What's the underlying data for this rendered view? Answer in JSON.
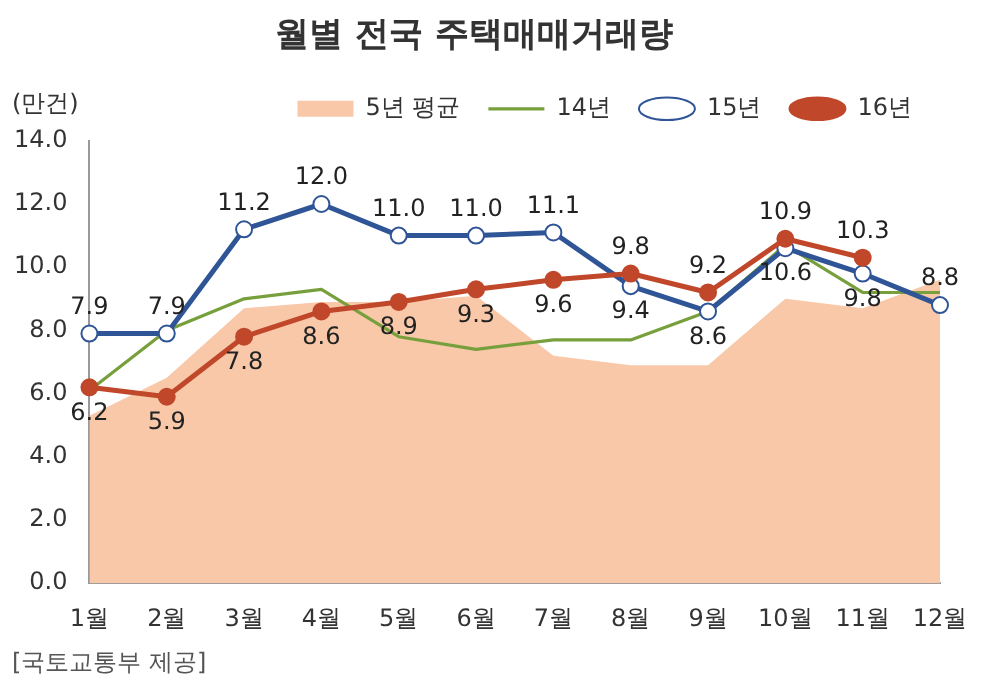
{
  "chart_data": {
    "type": "line",
    "title": "월별 전국 주택매매거래량",
    "ylabel": "(만건)",
    "categories": [
      "1월",
      "2월",
      "3월",
      "4월",
      "5월",
      "6월",
      "7월",
      "8월",
      "9월",
      "10월",
      "11월",
      "12월"
    ],
    "series": [
      {
        "name": "5년 평균",
        "type": "area",
        "color": "#f8c8a8",
        "marker": "none",
        "values": [
          5.3,
          6.5,
          8.7,
          8.9,
          8.9,
          9.1,
          7.2,
          6.9,
          6.9,
          9.0,
          8.7,
          9.6
        ]
      },
      {
        "name": "14년",
        "color": "#77a03c",
        "marker": "none",
        "values": [
          6.1,
          8.0,
          9.0,
          9.3,
          7.8,
          7.4,
          7.7,
          7.7,
          8.6,
          10.7,
          9.2,
          9.2
        ]
      },
      {
        "name": "15년",
        "color": "#2f5597",
        "marker": "circle",
        "values": [
          7.9,
          7.9,
          11.2,
          12.0,
          11.0,
          11.0,
          11.1,
          9.4,
          8.6,
          10.6,
          9.8,
          8.8
        ],
        "value_labels": [
          "7.9",
          "7.9",
          "11.2",
          "12.0",
          "11.0",
          "11.0",
          "11.1",
          "9.4",
          "8.6",
          "10.6",
          "9.8",
          "8.8"
        ]
      },
      {
        "name": "16년",
        "color": "#c0472a",
        "marker": "circle",
        "values": [
          6.2,
          5.9,
          7.8,
          8.6,
          8.9,
          9.3,
          9.6,
          9.8,
          9.2,
          10.9,
          10.3,
          null
        ],
        "value_labels": [
          "6.2",
          "5.9",
          "7.8",
          "8.6",
          "8.9",
          "9.3",
          "9.6",
          "9.8",
          "9.2",
          "10.9",
          "10.3",
          null
        ]
      }
    ],
    "ylim": [
      0,
      14
    ],
    "yticks": [
      {
        "value": 0,
        "label": "0.0"
      },
      {
        "value": 2,
        "label": "2.0"
      },
      {
        "value": 4,
        "label": "4.0"
      },
      {
        "value": 6,
        "label": "6.0"
      },
      {
        "value": 8,
        "label": "8.0"
      },
      {
        "value": 10,
        "label": "10.0"
      },
      {
        "value": 12,
        "label": "12.0"
      },
      {
        "value": 14,
        "label": "14.0"
      }
    ],
    "grid": false,
    "legend": "top",
    "annotations": [
      "[국토교통부 제공]"
    ]
  }
}
